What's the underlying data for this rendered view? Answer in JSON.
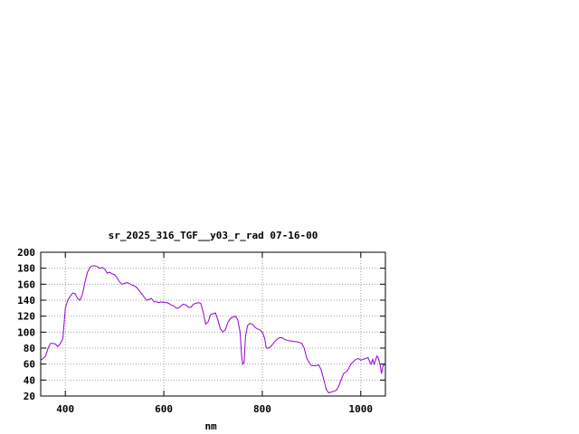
{
  "chart_data": {
    "type": "line",
    "title": "sr_2025_316_TGF__y03_r_rad 07-16-00",
    "xlabel": "nm",
    "ylabel": "",
    "xlim": [
      350,
      1050
    ],
    "ylim": [
      20,
      200
    ],
    "xticks": [
      400,
      600,
      800,
      1000
    ],
    "yticks": [
      20,
      40,
      60,
      80,
      100,
      120,
      140,
      160,
      180,
      200
    ],
    "grid": true,
    "line_color": "#9400d3",
    "series": [
      {
        "values_xy": [
          [
            350,
            65
          ],
          [
            355,
            67
          ],
          [
            360,
            70
          ],
          [
            365,
            80
          ],
          [
            370,
            86
          ],
          [
            375,
            86
          ],
          [
            380,
            85
          ],
          [
            385,
            82
          ],
          [
            390,
            86
          ],
          [
            395,
            92
          ],
          [
            400,
            130
          ],
          [
            405,
            140
          ],
          [
            410,
            145
          ],
          [
            415,
            149
          ],
          [
            420,
            148
          ],
          [
            425,
            142
          ],
          [
            430,
            140
          ],
          [
            435,
            148
          ],
          [
            440,
            163
          ],
          [
            445,
            175
          ],
          [
            450,
            181
          ],
          [
            455,
            183
          ],
          [
            460,
            183
          ],
          [
            465,
            182
          ],
          [
            470,
            180
          ],
          [
            475,
            181
          ],
          [
            480,
            179
          ],
          [
            485,
            174
          ],
          [
            490,
            175
          ],
          [
            495,
            173
          ],
          [
            500,
            172
          ],
          [
            505,
            168
          ],
          [
            510,
            163
          ],
          [
            515,
            160
          ],
          [
            520,
            161
          ],
          [
            525,
            162
          ],
          [
            530,
            161
          ],
          [
            535,
            159
          ],
          [
            540,
            158
          ],
          [
            545,
            156
          ],
          [
            550,
            152
          ],
          [
            555,
            148
          ],
          [
            560,
            144
          ],
          [
            565,
            140
          ],
          [
            570,
            141
          ],
          [
            575,
            142
          ],
          [
            580,
            138
          ],
          [
            585,
            138
          ],
          [
            590,
            137
          ],
          [
            595,
            138
          ],
          [
            600,
            137
          ],
          [
            605,
            137
          ],
          [
            610,
            136
          ],
          [
            615,
            134
          ],
          [
            620,
            133
          ],
          [
            625,
            130
          ],
          [
            630,
            130
          ],
          [
            635,
            133
          ],
          [
            640,
            135
          ],
          [
            645,
            134
          ],
          [
            650,
            131
          ],
          [
            655,
            131
          ],
          [
            660,
            135
          ],
          [
            665,
            136
          ],
          [
            670,
            137
          ],
          [
            675,
            136
          ],
          [
            680,
            125
          ],
          [
            685,
            110
          ],
          [
            690,
            113
          ],
          [
            695,
            122
          ],
          [
            700,
            123
          ],
          [
            705,
            124
          ],
          [
            710,
            115
          ],
          [
            715,
            104
          ],
          [
            720,
            100
          ],
          [
            725,
            103
          ],
          [
            730,
            112
          ],
          [
            735,
            117
          ],
          [
            740,
            119
          ],
          [
            745,
            120
          ],
          [
            750,
            116
          ],
          [
            755,
            100
          ],
          [
            758,
            70
          ],
          [
            760,
            60
          ],
          [
            763,
            62
          ],
          [
            766,
            95
          ],
          [
            770,
            108
          ],
          [
            775,
            111
          ],
          [
            780,
            110
          ],
          [
            785,
            106
          ],
          [
            790,
            104
          ],
          [
            795,
            103
          ],
          [
            800,
            100
          ],
          [
            805,
            92
          ],
          [
            808,
            80
          ],
          [
            812,
            80
          ],
          [
            816,
            81
          ],
          [
            820,
            84
          ],
          [
            825,
            88
          ],
          [
            830,
            91
          ],
          [
            835,
            93
          ],
          [
            840,
            93
          ],
          [
            845,
            91
          ],
          [
            850,
            90
          ],
          [
            855,
            89
          ],
          [
            860,
            89
          ],
          [
            865,
            88
          ],
          [
            870,
            88
          ],
          [
            875,
            87
          ],
          [
            880,
            86
          ],
          [
            885,
            80
          ],
          [
            890,
            68
          ],
          [
            895,
            62
          ],
          [
            900,
            58
          ],
          [
            905,
            58
          ],
          [
            910,
            58
          ],
          [
            915,
            59
          ],
          [
            920,
            52
          ],
          [
            925,
            40
          ],
          [
            930,
            28
          ],
          [
            935,
            24
          ],
          [
            940,
            25
          ],
          [
            945,
            26
          ],
          [
            950,
            27
          ],
          [
            955,
            32
          ],
          [
            960,
            40
          ],
          [
            965,
            48
          ],
          [
            970,
            50
          ],
          [
            975,
            54
          ],
          [
            980,
            60
          ],
          [
            985,
            63
          ],
          [
            990,
            66
          ],
          [
            995,
            67
          ],
          [
            1000,
            65
          ],
          [
            1005,
            66
          ],
          [
            1010,
            67
          ],
          [
            1015,
            68
          ],
          [
            1018,
            63
          ],
          [
            1021,
            60
          ],
          [
            1024,
            66
          ],
          [
            1027,
            60
          ],
          [
            1030,
            65
          ],
          [
            1033,
            70
          ],
          [
            1036,
            67
          ],
          [
            1038,
            62
          ],
          [
            1040,
            56
          ],
          [
            1042,
            48
          ],
          [
            1044,
            54
          ],
          [
            1046,
            60
          ],
          [
            1050,
            58
          ]
        ]
      }
    ]
  }
}
